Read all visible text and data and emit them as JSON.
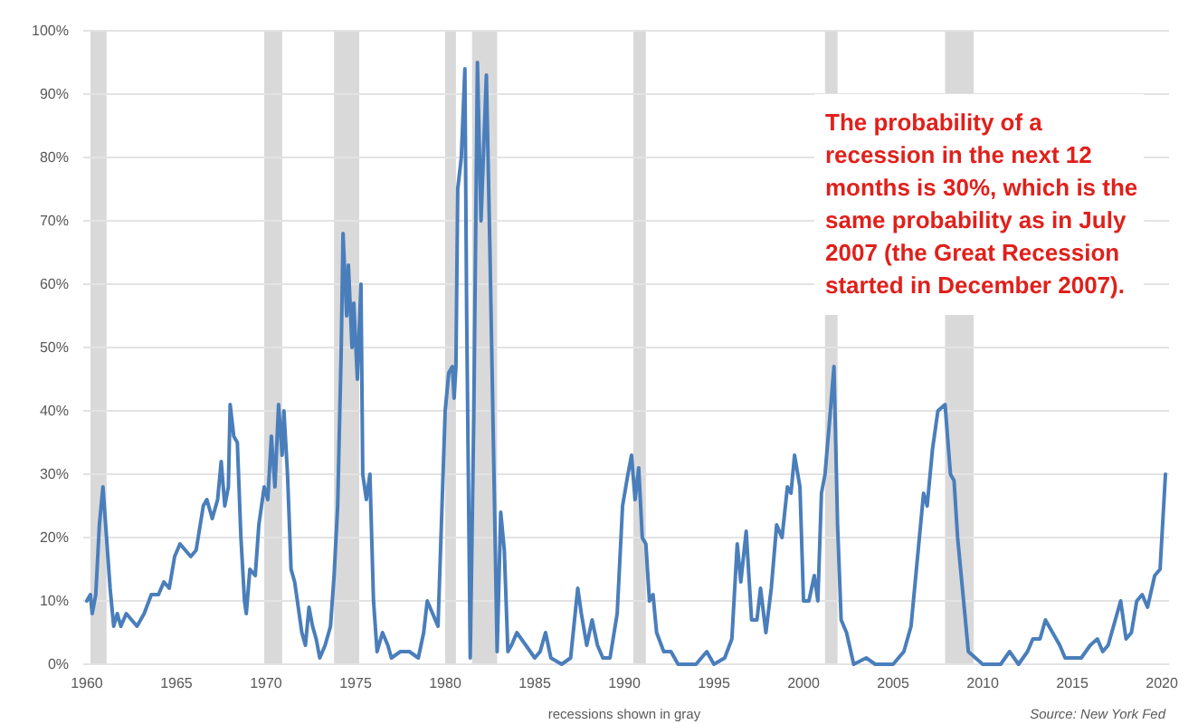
{
  "chart_data": {
    "type": "line",
    "x": [
      1960.0,
      1960.2,
      1960.3,
      1960.5,
      1960.7,
      1960.9,
      1961.1,
      1961.3,
      1961.5,
      1961.7,
      1961.9,
      1962.2,
      1962.5,
      1962.8,
      1963.2,
      1963.6,
      1964.0,
      1964.3,
      1964.6,
      1964.9,
      1965.2,
      1965.5,
      1965.8,
      1966.1,
      1966.5,
      1966.7,
      1967.0,
      1967.3,
      1967.5,
      1967.7,
      1967.9,
      1968.0,
      1968.2,
      1968.4,
      1968.6,
      1968.8,
      1968.9,
      1969.1,
      1969.4,
      1969.6,
      1969.9,
      1970.1,
      1970.3,
      1970.5,
      1970.7,
      1970.9,
      1971.0,
      1971.2,
      1971.4,
      1971.6,
      1971.8,
      1972.0,
      1972.2,
      1972.4,
      1972.6,
      1972.8,
      1973.0,
      1973.3,
      1973.6,
      1973.8,
      1974.0,
      1974.2,
      1974.3,
      1974.5,
      1974.6,
      1974.8,
      1974.9,
      1975.1,
      1975.3,
      1975.4,
      1975.6,
      1975.8,
      1976.0,
      1976.2,
      1976.5,
      1976.8,
      1977.0,
      1977.5,
      1978.0,
      1978.5,
      1978.8,
      1979.0,
      1979.3,
      1979.6,
      1979.8,
      1980.0,
      1980.2,
      1980.4,
      1980.5,
      1980.6,
      1980.7,
      1980.9,
      1981.1,
      1981.2,
      1981.4,
      1981.6,
      1981.8,
      1982.0,
      1982.3,
      1982.5,
      1982.9,
      1983.1,
      1983.3,
      1983.5,
      1983.7,
      1984.0,
      1984.5,
      1985.0,
      1985.3,
      1985.6,
      1985.9,
      1986.5,
      1987.0,
      1987.4,
      1987.6,
      1987.9,
      1988.2,
      1988.5,
      1988.8,
      1989.2,
      1989.6,
      1989.9,
      1990.2,
      1990.4,
      1990.6,
      1990.8,
      1991.0,
      1991.2,
      1991.4,
      1991.6,
      1991.8,
      1992.2,
      1992.6,
      1993.0,
      1994.0,
      1994.6,
      1995.0,
      1995.6,
      1996.0,
      1996.3,
      1996.5,
      1996.8,
      1997.1,
      1997.4,
      1997.6,
      1997.9,
      1998.2,
      1998.5,
      1998.8,
      1999.1,
      1999.3,
      1999.5,
      1999.8,
      2000.0,
      2000.3,
      2000.6,
      2000.8,
      2001.0,
      2001.2,
      2001.5,
      2001.7,
      2001.9,
      2002.1,
      2002.4,
      2002.8,
      2003.5,
      2004.0,
      2004.5,
      2005.0,
      2005.6,
      2006.0,
      2006.4,
      2006.7,
      2006.9,
      2007.2,
      2007.5,
      2007.9,
      2008.2,
      2008.4,
      2008.6,
      2008.9,
      2009.2,
      2009.6,
      2010.0,
      2011.0,
      2011.5,
      2012.0,
      2012.5,
      2012.8,
      2013.2,
      2013.5,
      2013.9,
      2014.3,
      2014.6,
      2015.5,
      2016.0,
      2016.4,
      2016.7,
      2017.0,
      2017.4,
      2017.7,
      2018.0,
      2018.3,
      2018.6,
      2018.9,
      2019.2,
      2019.6,
      2019.9,
      2020.2
    ],
    "series": [
      {
        "color": "#4a7ebb",
        "values": [
          10,
          11,
          8,
          11,
          22,
          28,
          20,
          12,
          6,
          8,
          6,
          8,
          7,
          6,
          8,
          11,
          11,
          13,
          12,
          17,
          19,
          18,
          17,
          18,
          25,
          26,
          23,
          26,
          32,
          25,
          28,
          41,
          36,
          35,
          20,
          10,
          8,
          15,
          14,
          22,
          28,
          26,
          36,
          28,
          41,
          33,
          40,
          30,
          15,
          13,
          9,
          5,
          3,
          9,
          6,
          4,
          1,
          3,
          6,
          14,
          25,
          50,
          68,
          55,
          63,
          50,
          57,
          45,
          60,
          30,
          26,
          30,
          10,
          2,
          5,
          3,
          1,
          2,
          2,
          1,
          5,
          10,
          8,
          6,
          23,
          40,
          46,
          47,
          42,
          47,
          75,
          80,
          94,
          55,
          1,
          40,
          95,
          70,
          93,
          65,
          2,
          24,
          18,
          2,
          3,
          5,
          3,
          1,
          2,
          5,
          1,
          0,
          1,
          12,
          8,
          3,
          7,
          3,
          1,
          1,
          8,
          25,
          30,
          33,
          26,
          31,
          20,
          19,
          10,
          11,
          5,
          2,
          2,
          0,
          0,
          2,
          0,
          1,
          4,
          19,
          13,
          21,
          7,
          7,
          12,
          5,
          12,
          22,
          20,
          28,
          27,
          33,
          28,
          10,
          10,
          14,
          10,
          27,
          30,
          40,
          47,
          22,
          7,
          5,
          0,
          1,
          0,
          0,
          0,
          2,
          6,
          18,
          27,
          25,
          34,
          40,
          41,
          30,
          29,
          20,
          11,
          2,
          1,
          0,
          0,
          2,
          0,
          2,
          4,
          4,
          7,
          5,
          3,
          1,
          1,
          3,
          4,
          2,
          3,
          7,
          10,
          4,
          5,
          10,
          11,
          9,
          14,
          15,
          30
        ]
      }
    ],
    "xlim": [
      1959.8,
      2020.4
    ],
    "xticks": [
      1960,
      1965,
      1970,
      1975,
      1980,
      1985,
      1990,
      1995,
      2000,
      2005,
      2010,
      2015,
      2020
    ],
    "ylim": [
      0,
      100
    ],
    "yticks": [
      {
        "value": 0,
        "label": "0%"
      },
      {
        "value": 10,
        "label": "10%"
      },
      {
        "value": 20,
        "label": "20%"
      },
      {
        "value": 30,
        "label": "30%"
      },
      {
        "value": 40,
        "label": "40%"
      },
      {
        "value": 50,
        "label": "50%"
      },
      {
        "value": 60,
        "label": "60%"
      },
      {
        "value": 70,
        "label": "70%"
      },
      {
        "value": 80,
        "label": "80%"
      },
      {
        "value": 90,
        "label": "90%"
      },
      {
        "value": 100,
        "label": "100%"
      }
    ],
    "grid": "y",
    "marker": "none",
    "line_style": "solid",
    "bands": [
      {
        "axis": "x",
        "from": 1960.2,
        "to": 1961.1,
        "color": "#d9d9d9"
      },
      {
        "axis": "x",
        "from": 1969.9,
        "to": 1970.9,
        "color": "#d9d9d9"
      },
      {
        "axis": "x",
        "from": 1973.8,
        "to": 1975.2,
        "color": "#d9d9d9"
      },
      {
        "axis": "x",
        "from": 1980.0,
        "to": 1980.6,
        "color": "#d9d9d9"
      },
      {
        "axis": "x",
        "from": 1981.5,
        "to": 1982.9,
        "color": "#d9d9d9"
      },
      {
        "axis": "x",
        "from": 1990.5,
        "to": 1991.2,
        "color": "#d9d9d9"
      },
      {
        "axis": "x",
        "from": 2001.2,
        "to": 2001.9,
        "color": "#d9d9d9"
      },
      {
        "axis": "x",
        "from": 2007.9,
        "to": 2009.5,
        "color": "#d9d9d9"
      }
    ],
    "annotations": [
      "The probability of a recession in the next 12 months is 30%, which is the same probability as in July 2007 (the Great Recession started in December 2007).",
      "recessions shown in gray",
      "Source: New York Fed"
    ]
  }
}
